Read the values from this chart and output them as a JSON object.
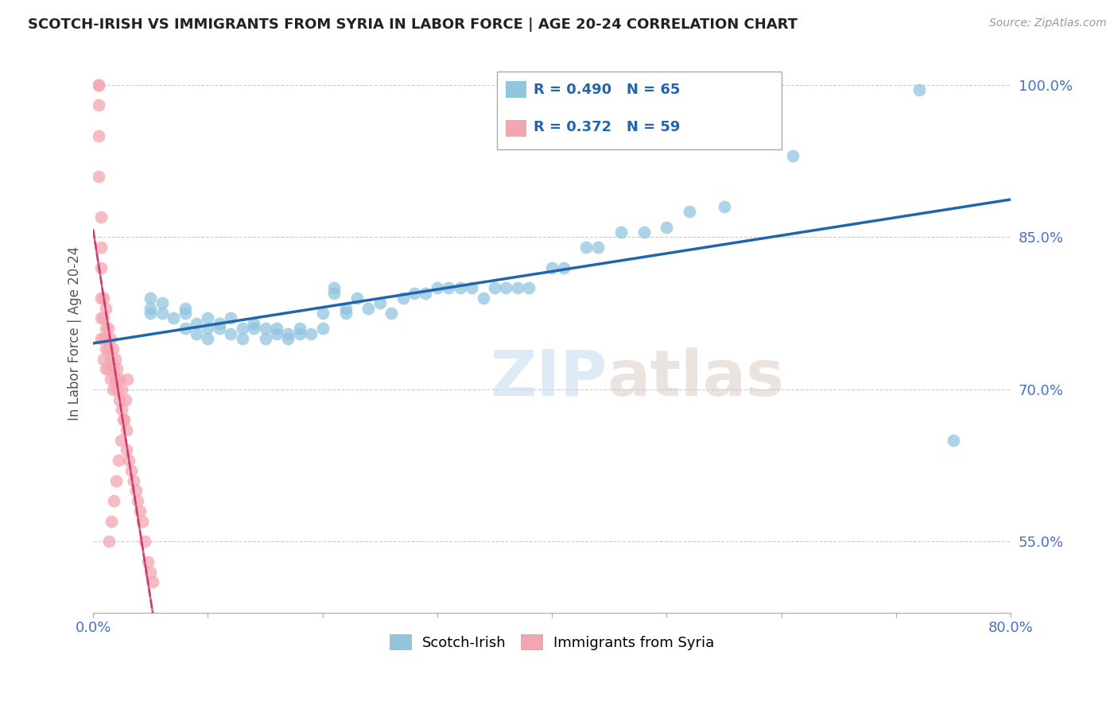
{
  "title": "SCOTCH-IRISH VS IMMIGRANTS FROM SYRIA IN LABOR FORCE | AGE 20-24 CORRELATION CHART",
  "source": "Source: ZipAtlas.com",
  "ylabel": "In Labor Force | Age 20-24",
  "xlim": [
    0.0,
    0.8
  ],
  "ylim": [
    0.48,
    1.03
  ],
  "scotch_irish_R": 0.49,
  "scotch_irish_N": 65,
  "syria_R": 0.372,
  "syria_N": 59,
  "scotch_irish_color": "#92C5DE",
  "syria_color": "#F4A6B0",
  "scotch_irish_line_color": "#2166AC",
  "syria_line_color": "#E07090",
  "watermark_zip": "ZIP",
  "watermark_atlas": "atlas",
  "scotch_irish_x": [
    0.05,
    0.05,
    0.05,
    0.06,
    0.06,
    0.07,
    0.08,
    0.08,
    0.08,
    0.09,
    0.09,
    0.1,
    0.1,
    0.1,
    0.11,
    0.11,
    0.12,
    0.12,
    0.13,
    0.13,
    0.14,
    0.14,
    0.15,
    0.15,
    0.16,
    0.16,
    0.17,
    0.17,
    0.18,
    0.18,
    0.19,
    0.2,
    0.2,
    0.21,
    0.21,
    0.22,
    0.22,
    0.23,
    0.24,
    0.25,
    0.26,
    0.27,
    0.28,
    0.29,
    0.3,
    0.31,
    0.32,
    0.33,
    0.34,
    0.35,
    0.36,
    0.37,
    0.38,
    0.4,
    0.41,
    0.43,
    0.44,
    0.46,
    0.48,
    0.5,
    0.52,
    0.55,
    0.61,
    0.72,
    0.75
  ],
  "scotch_irish_y": [
    0.775,
    0.78,
    0.79,
    0.775,
    0.785,
    0.77,
    0.775,
    0.78,
    0.76,
    0.765,
    0.755,
    0.76,
    0.77,
    0.75,
    0.76,
    0.765,
    0.77,
    0.755,
    0.76,
    0.75,
    0.76,
    0.765,
    0.76,
    0.75,
    0.755,
    0.76,
    0.755,
    0.75,
    0.76,
    0.755,
    0.755,
    0.775,
    0.76,
    0.8,
    0.795,
    0.78,
    0.775,
    0.79,
    0.78,
    0.785,
    0.775,
    0.79,
    0.795,
    0.795,
    0.8,
    0.8,
    0.8,
    0.8,
    0.79,
    0.8,
    0.8,
    0.8,
    0.8,
    0.82,
    0.82,
    0.84,
    0.84,
    0.855,
    0.855,
    0.86,
    0.875,
    0.88,
    0.93,
    0.995,
    0.65
  ],
  "syria_x": [
    0.005,
    0.005,
    0.005,
    0.005,
    0.005,
    0.007,
    0.007,
    0.007,
    0.007,
    0.007,
    0.007,
    0.009,
    0.009,
    0.009,
    0.009,
    0.011,
    0.011,
    0.011,
    0.011,
    0.013,
    0.013,
    0.013,
    0.015,
    0.015,
    0.015,
    0.017,
    0.017,
    0.017,
    0.019,
    0.019,
    0.021,
    0.021,
    0.023,
    0.023,
    0.025,
    0.025,
    0.027,
    0.029,
    0.029,
    0.031,
    0.033,
    0.035,
    0.037,
    0.039,
    0.041,
    0.043,
    0.045,
    0.048,
    0.05,
    0.052,
    0.03,
    0.028,
    0.026,
    0.024,
    0.022,
    0.02,
    0.018,
    0.016,
    0.014
  ],
  "syria_y": [
    1.0,
    1.0,
    0.98,
    0.95,
    0.91,
    0.87,
    0.84,
    0.82,
    0.79,
    0.77,
    0.75,
    0.79,
    0.77,
    0.75,
    0.73,
    0.78,
    0.76,
    0.74,
    0.72,
    0.76,
    0.74,
    0.72,
    0.75,
    0.73,
    0.71,
    0.74,
    0.72,
    0.7,
    0.73,
    0.71,
    0.72,
    0.7,
    0.71,
    0.69,
    0.7,
    0.68,
    0.67,
    0.66,
    0.64,
    0.63,
    0.62,
    0.61,
    0.6,
    0.59,
    0.58,
    0.57,
    0.55,
    0.53,
    0.52,
    0.51,
    0.71,
    0.69,
    0.67,
    0.65,
    0.63,
    0.61,
    0.59,
    0.57,
    0.55
  ]
}
